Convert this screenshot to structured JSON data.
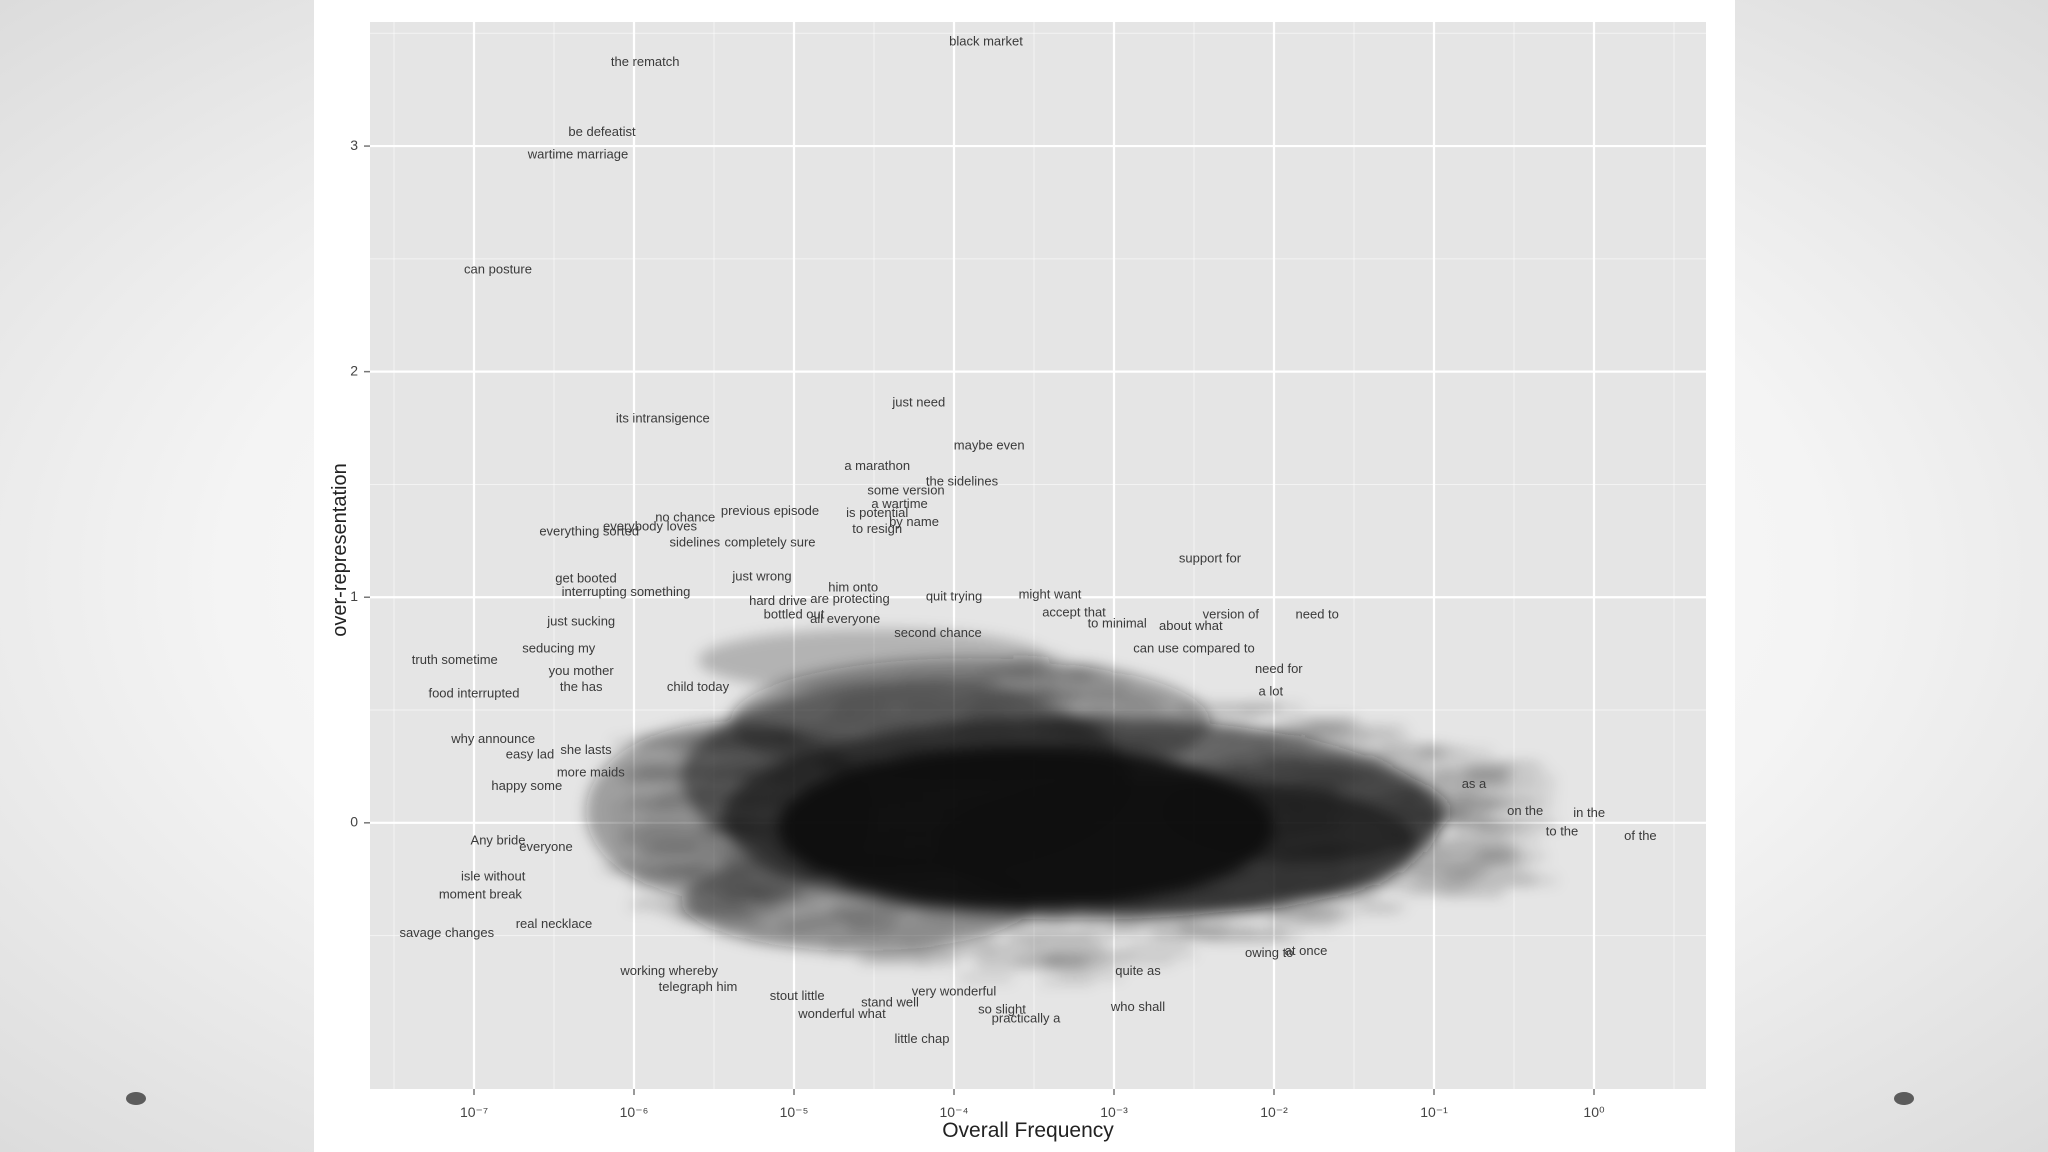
{
  "colors": {
    "panel_bg": "#e5e5e5",
    "grid": "#ffffff",
    "word_text": "#3a3a3a",
    "axis_text": "#444444",
    "tick_mark": "#777777",
    "cloud": "#111111"
  },
  "chart_data": {
    "type": "scatter",
    "title": "",
    "xlabel": "Overall Frequency",
    "ylabel": "over-representation",
    "x_scale": "log10",
    "xlim_log10": [
      -7.65,
      0.7
    ],
    "ylim": [
      -1.18,
      3.55
    ],
    "x_ticks_log10": [
      -7,
      -6,
      -5,
      -4,
      -3,
      -2,
      -1,
      0
    ],
    "x_tick_labels": [
      "10⁻⁷",
      "10⁻⁶",
      "10⁻⁵",
      "10⁻⁴",
      "10⁻³",
      "10⁻²",
      "10⁻¹",
      "10⁰"
    ],
    "y_ticks": [
      0,
      1,
      2,
      3
    ],
    "y_tick_labels": [
      "0",
      "1",
      "2",
      "3"
    ],
    "grid": true,
    "legend": "none",
    "note": "Each point is drawn as its text label; thousands of overlapping labels form a dense dark cloud centered near x=10^-3.5, y=0.",
    "points": [
      {
        "label": "black market",
        "x": -3.8,
        "y": 3.46
      },
      {
        "label": "the rematch",
        "x": -5.93,
        "y": 3.37
      },
      {
        "label": "be defeatist",
        "x": -6.2,
        "y": 3.06
      },
      {
        "label": "wartime marriage",
        "x": -6.35,
        "y": 2.96
      },
      {
        "label": "can posture",
        "x": -6.85,
        "y": 2.45
      },
      {
        "label": "just need",
        "x": -4.22,
        "y": 1.86
      },
      {
        "label": "its intransigence",
        "x": -5.82,
        "y": 1.79
      },
      {
        "label": "maybe even",
        "x": -3.78,
        "y": 1.67
      },
      {
        "label": "a marathon",
        "x": -4.48,
        "y": 1.58
      },
      {
        "label": "the sidelines",
        "x": -3.95,
        "y": 1.51
      },
      {
        "label": "some version",
        "x": -4.3,
        "y": 1.47
      },
      {
        "label": "a wartime",
        "x": -4.34,
        "y": 1.41
      },
      {
        "label": "previous episode",
        "x": -5.15,
        "y": 1.38
      },
      {
        "label": "is potential",
        "x": -4.48,
        "y": 1.37
      },
      {
        "label": "no chance",
        "x": -5.68,
        "y": 1.35
      },
      {
        "label": "everything sorted",
        "x": -6.28,
        "y": 1.29
      },
      {
        "label": "everybody loves",
        "x": -5.9,
        "y": 1.31
      },
      {
        "label": "to resign",
        "x": -4.48,
        "y": 1.3
      },
      {
        "label": "by name",
        "x": -4.25,
        "y": 1.33
      },
      {
        "label": "sidelines",
        "x": -5.62,
        "y": 1.24
      },
      {
        "label": "completely sure",
        "x": -5.15,
        "y": 1.24
      },
      {
        "label": "support for",
        "x": -2.4,
        "y": 1.17
      },
      {
        "label": "get booted",
        "x": -6.3,
        "y": 1.08
      },
      {
        "label": "just wrong",
        "x": -5.2,
        "y": 1.09
      },
      {
        "label": "interrupting something",
        "x": -6.05,
        "y": 1.02
      },
      {
        "label": "him onto",
        "x": -4.63,
        "y": 1.04
      },
      {
        "label": "might want",
        "x": -3.4,
        "y": 1.01
      },
      {
        "label": "quit trying",
        "x": -4.0,
        "y": 1.0
      },
      {
        "label": "hard drive",
        "x": -5.1,
        "y": 0.98
      },
      {
        "label": "are protecting",
        "x": -4.65,
        "y": 0.99
      },
      {
        "label": "version of",
        "x": -2.27,
        "y": 0.92
      },
      {
        "label": "need to",
        "x": -1.73,
        "y": 0.92
      },
      {
        "label": "accept that",
        "x": -3.25,
        "y": 0.93
      },
      {
        "label": "just sucking",
        "x": -6.33,
        "y": 0.89
      },
      {
        "label": "bottled out",
        "x": -5.0,
        "y": 0.92
      },
      {
        "label": "about what",
        "x": -2.52,
        "y": 0.87
      },
      {
        "label": "to minimal",
        "x": -2.98,
        "y": 0.88
      },
      {
        "label": "all everyone",
        "x": -4.68,
        "y": 0.9
      },
      {
        "label": "second chance",
        "x": -4.1,
        "y": 0.84
      },
      {
        "label": "truth sometime",
        "x": -7.12,
        "y": 0.72
      },
      {
        "label": "seducing my",
        "x": -6.47,
        "y": 0.77
      },
      {
        "label": "can use compared to",
        "x": -2.5,
        "y": 0.77
      },
      {
        "label": "you mother",
        "x": -6.33,
        "y": 0.67
      },
      {
        "label": "need for",
        "x": -1.97,
        "y": 0.68
      },
      {
        "label": "the has",
        "x": -6.33,
        "y": 0.6
      },
      {
        "label": "child today",
        "x": -5.6,
        "y": 0.6
      },
      {
        "label": "a lot",
        "x": -2.02,
        "y": 0.58
      },
      {
        "label": "food interrupted",
        "x": -7.0,
        "y": 0.57
      },
      {
        "label": "why announce",
        "x": -6.88,
        "y": 0.37
      },
      {
        "label": "easy lad",
        "x": -6.65,
        "y": 0.3
      },
      {
        "label": "she lasts",
        "x": -6.3,
        "y": 0.32
      },
      {
        "label": "more maids",
        "x": -6.27,
        "y": 0.22
      },
      {
        "label": "happy some",
        "x": -6.67,
        "y": 0.16
      },
      {
        "label": "as a",
        "x": -0.75,
        "y": 0.17
      },
      {
        "label": "in the",
        "x": -0.03,
        "y": 0.04
      },
      {
        "label": "on the",
        "x": -0.43,
        "y": 0.05
      },
      {
        "label": "to the",
        "x": -0.2,
        "y": -0.04
      },
      {
        "label": "of the",
        "x": 0.29,
        "y": -0.06
      },
      {
        "label": "Any bride",
        "x": -6.85,
        "y": -0.08
      },
      {
        "label": "everyone",
        "x": -6.55,
        "y": -0.11
      },
      {
        "label": "isle without",
        "x": -6.88,
        "y": -0.24
      },
      {
        "label": "moment break",
        "x": -6.96,
        "y": -0.32
      },
      {
        "label": "real necklace",
        "x": -6.5,
        "y": -0.45
      },
      {
        "label": "savage changes",
        "x": -7.17,
        "y": -0.49
      },
      {
        "label": "at once",
        "x": -1.8,
        "y": -0.57
      },
      {
        "label": "owing to",
        "x": -2.03,
        "y": -0.58
      },
      {
        "label": "quite as",
        "x": -2.85,
        "y": -0.66
      },
      {
        "label": "working whereby",
        "x": -5.78,
        "y": -0.66
      },
      {
        "label": "telegraph him",
        "x": -5.6,
        "y": -0.73
      },
      {
        "label": "very wonderful",
        "x": -4.0,
        "y": -0.75
      },
      {
        "label": "stout little",
        "x": -4.98,
        "y": -0.77
      },
      {
        "label": "stand well",
        "x": -4.4,
        "y": -0.8
      },
      {
        "label": "who shall",
        "x": -2.85,
        "y": -0.82
      },
      {
        "label": "wonderful what",
        "x": -4.7,
        "y": -0.85
      },
      {
        "label": "so slight",
        "x": -3.7,
        "y": -0.83
      },
      {
        "label": "practically a",
        "x": -3.55,
        "y": -0.87
      },
      {
        "label": "little chap",
        "x": -4.2,
        "y": -0.96
      }
    ]
  }
}
